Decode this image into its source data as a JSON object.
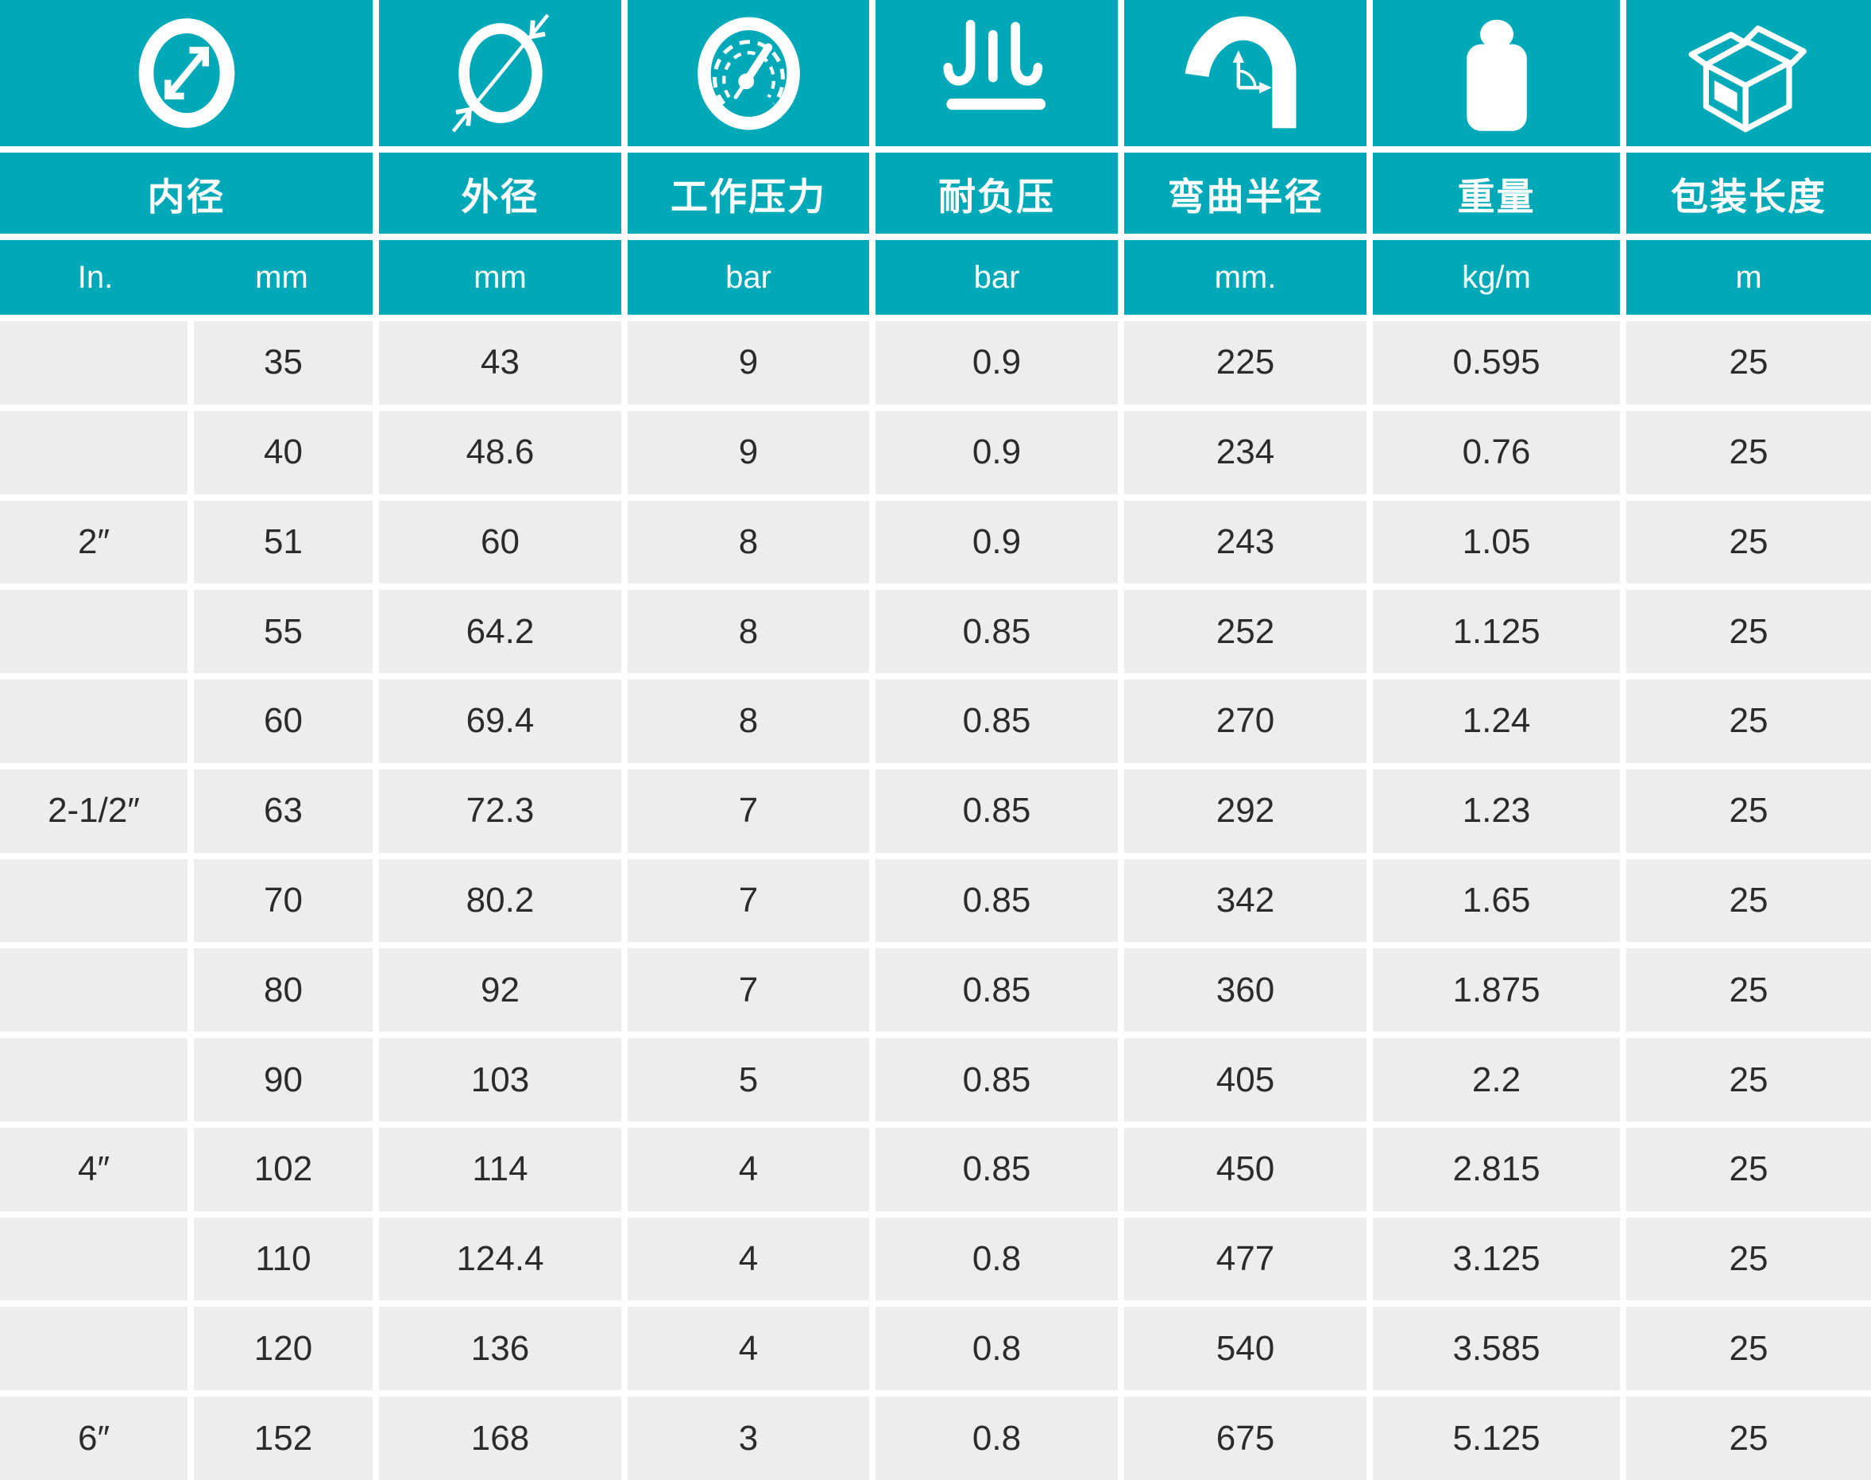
{
  "table": {
    "columns": [
      {
        "label": "内径",
        "icon": "inner-diameter-icon",
        "units": [
          "In.",
          "mm"
        ]
      },
      {
        "label": "外径",
        "icon": "outer-diameter-icon",
        "unit": "mm"
      },
      {
        "label": "工作压力",
        "icon": "pressure-gauge-icon",
        "unit": "bar"
      },
      {
        "label": "耐负压",
        "icon": "vacuum-icon",
        "unit": "bar"
      },
      {
        "label": "弯曲半径",
        "icon": "bend-radius-icon",
        "unit": "mm."
      },
      {
        "label": "重量",
        "icon": "weight-icon",
        "unit": "kg/m"
      },
      {
        "label": "包装长度",
        "icon": "package-box-icon",
        "unit": "m"
      }
    ],
    "rows": [
      [
        "",
        "35",
        "43",
        "9",
        "0.9",
        "225",
        "0.595",
        "25"
      ],
      [
        "",
        "40",
        "48.6",
        "9",
        "0.9",
        "234",
        "0.76",
        "25"
      ],
      [
        "2″",
        "51",
        "60",
        "8",
        "0.9",
        "243",
        "1.05",
        "25"
      ],
      [
        "",
        "55",
        "64.2",
        "8",
        "0.85",
        "252",
        "1.125",
        "25"
      ],
      [
        "",
        "60",
        "69.4",
        "8",
        "0.85",
        "270",
        "1.24",
        "25"
      ],
      [
        "2-1/2″",
        "63",
        "72.3",
        "7",
        "0.85",
        "292",
        "1.23",
        "25"
      ],
      [
        "",
        "70",
        "80.2",
        "7",
        "0.85",
        "342",
        "1.65",
        "25"
      ],
      [
        "",
        "80",
        "92",
        "7",
        "0.85",
        "360",
        "1.875",
        "25"
      ],
      [
        "",
        "90",
        "103",
        "5",
        "0.85",
        "405",
        "2.2",
        "25"
      ],
      [
        "4″",
        "102",
        "114",
        "4",
        "0.85",
        "450",
        "2.815",
        "25"
      ],
      [
        "",
        "110",
        "124.4",
        "4",
        "0.8",
        "477",
        "3.125",
        "25"
      ],
      [
        "",
        "120",
        "136",
        "4",
        "0.8",
        "540",
        "3.585",
        "25"
      ],
      [
        "6″",
        "152",
        "168",
        "3",
        "0.8",
        "675",
        "5.125",
        "25"
      ]
    ],
    "colors": {
      "header_teal": "#00a9b8",
      "cell_gray": "#ededee",
      "divider_white": "#ffffff",
      "text_dark": "#2b2b2b",
      "text_light": "#ffffff"
    }
  }
}
